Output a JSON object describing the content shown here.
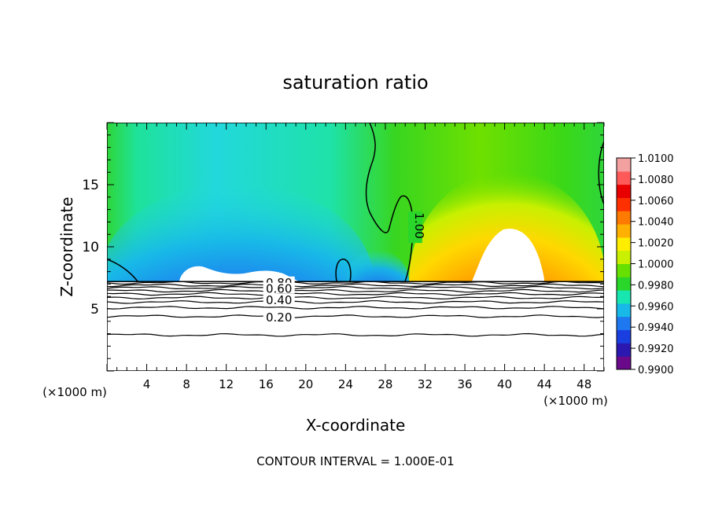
{
  "chart_data": {
    "type": "heatmap",
    "title": "saturation ratio",
    "xlabel": "X-coordinate",
    "ylabel": "Z-coordinate",
    "x_unit_left": "(×1000 m)",
    "x_unit_right": "(×1000 m)",
    "footer": "CONTOUR INTERVAL = 1.000E-01",
    "xlim": [
      0,
      50
    ],
    "ylim": [
      0,
      20
    ],
    "x_ticks": [
      "4",
      "8",
      "12",
      "16",
      "20",
      "24",
      "28",
      "32",
      "36",
      "40",
      "44",
      "48"
    ],
    "x_tick_values": [
      4,
      8,
      12,
      16,
      20,
      24,
      28,
      32,
      36,
      40,
      44,
      48
    ],
    "y_ticks": [
      "5",
      "10",
      "15"
    ],
    "y_tick_values": [
      5,
      10,
      15
    ],
    "colorbar": {
      "labels": [
        "0.9900",
        "0.9920",
        "0.9940",
        "0.9960",
        "0.9980",
        "1.0000",
        "1.0020",
        "1.0040",
        "1.0060",
        "1.0080",
        "1.0100"
      ],
      "values": [
        0.99,
        0.992,
        0.994,
        0.996,
        0.998,
        1.0,
        1.002,
        1.004,
        1.006,
        1.008,
        1.01
      ],
      "colors": [
        "#6a0a8a",
        "#2a18b0",
        "#1a3fe0",
        "#1e78f0",
        "#18b8e8",
        "#18e6b0",
        "#2ad62a",
        "#66e000",
        "#c8f000",
        "#ffee00",
        "#ffb000",
        "#ff7a00",
        "#ff3000",
        "#e80000",
        "#ff5a5a",
        "#f2a0a0"
      ]
    },
    "contour_labels": [
      {
        "text": "1.00",
        "x": 31.0,
        "y": 11.7
      },
      {
        "text": "0.80",
        "x": 17.3,
        "y": 7.1
      },
      {
        "text": "0.60",
        "x": 17.3,
        "y": 6.6
      },
      {
        "text": "0.40",
        "x": 17.3,
        "y": 5.7
      },
      {
        "text": "0.20",
        "x": 17.3,
        "y": 4.3
      }
    ],
    "terrain_top_z": 7.2,
    "lower_contour_levels_z": [
      7.1,
      6.9,
      6.7,
      6.45,
      6.2,
      5.9,
      5.55,
      5.1,
      4.4,
      2.9
    ]
  }
}
